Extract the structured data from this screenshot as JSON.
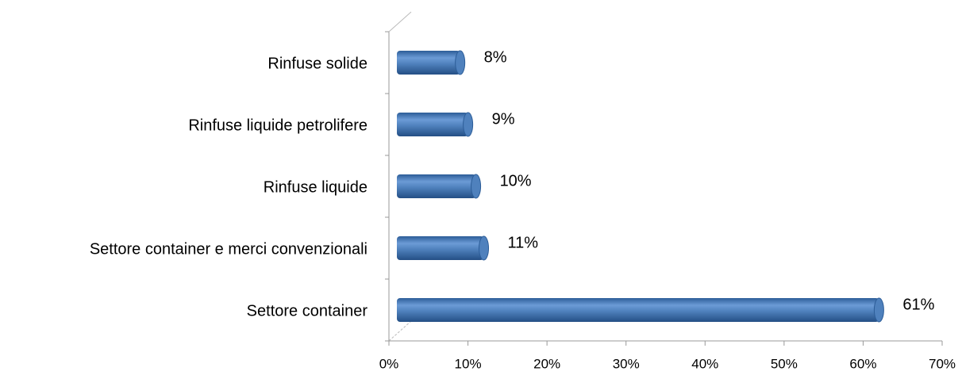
{
  "chart_data": {
    "type": "bar",
    "orientation": "horizontal",
    "categories": [
      "Rinfuse solide",
      "Rinfuse liquide petrolifere",
      "Rinfuse liquide",
      "Settore container e merci convenzionali",
      "Settore container"
    ],
    "values": [
      8,
      9,
      10,
      11,
      61
    ],
    "value_labels": [
      "8%",
      "9%",
      "10%",
      "11%",
      "61%"
    ],
    "color": "#4f81bd",
    "xlim": [
      0,
      70
    ],
    "xticks": [
      {
        "value": 0,
        "label": "0%"
      },
      {
        "value": 10,
        "label": "10%"
      },
      {
        "value": 20,
        "label": "20%"
      },
      {
        "value": 30,
        "label": "30%"
      },
      {
        "value": 40,
        "label": "40%"
      },
      {
        "value": 50,
        "label": "50%"
      },
      {
        "value": 60,
        "label": "60%"
      },
      {
        "value": 70,
        "label": "70%"
      }
    ]
  }
}
